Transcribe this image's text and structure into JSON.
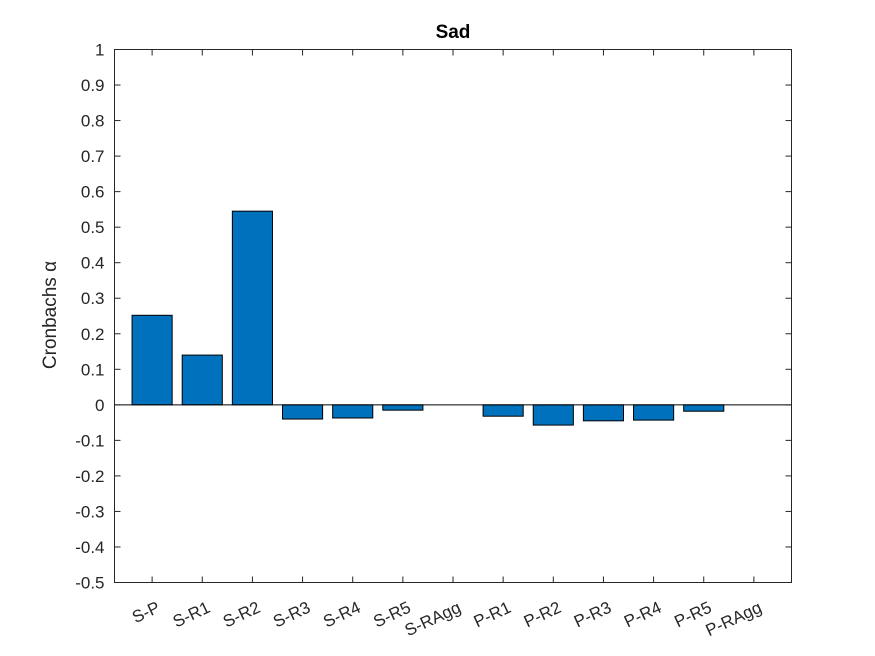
{
  "chart_data": {
    "type": "bar",
    "title": "Sad",
    "ylabel": "Cronbachs α",
    "xlabel": "",
    "categories": [
      "S-P",
      "S-R1",
      "S-R2",
      "S-R3",
      "S-R4",
      "S-R5",
      "S-RAgg",
      "P-R1",
      "P-R2",
      "P-R3",
      "P-R4",
      "P-R5",
      "P-RAgg"
    ],
    "values": [
      0.252,
      0.14,
      0.545,
      -0.04,
      -0.037,
      -0.015,
      0,
      -0.032,
      -0.057,
      -0.045,
      -0.043,
      -0.018,
      0
    ],
    "ylim": [
      -0.5,
      1
    ],
    "yticks": [
      "-0.5",
      "-0.4",
      "-0.3",
      "-0.2",
      "-0.1",
      "0",
      "0.1",
      "0.2",
      "0.3",
      "0.4",
      "0.5",
      "0.6",
      "0.7",
      "0.8",
      "0.9",
      "1"
    ],
    "grid": false,
    "bar_color": "#0072BD",
    "bar_edge_color": "#000000"
  }
}
